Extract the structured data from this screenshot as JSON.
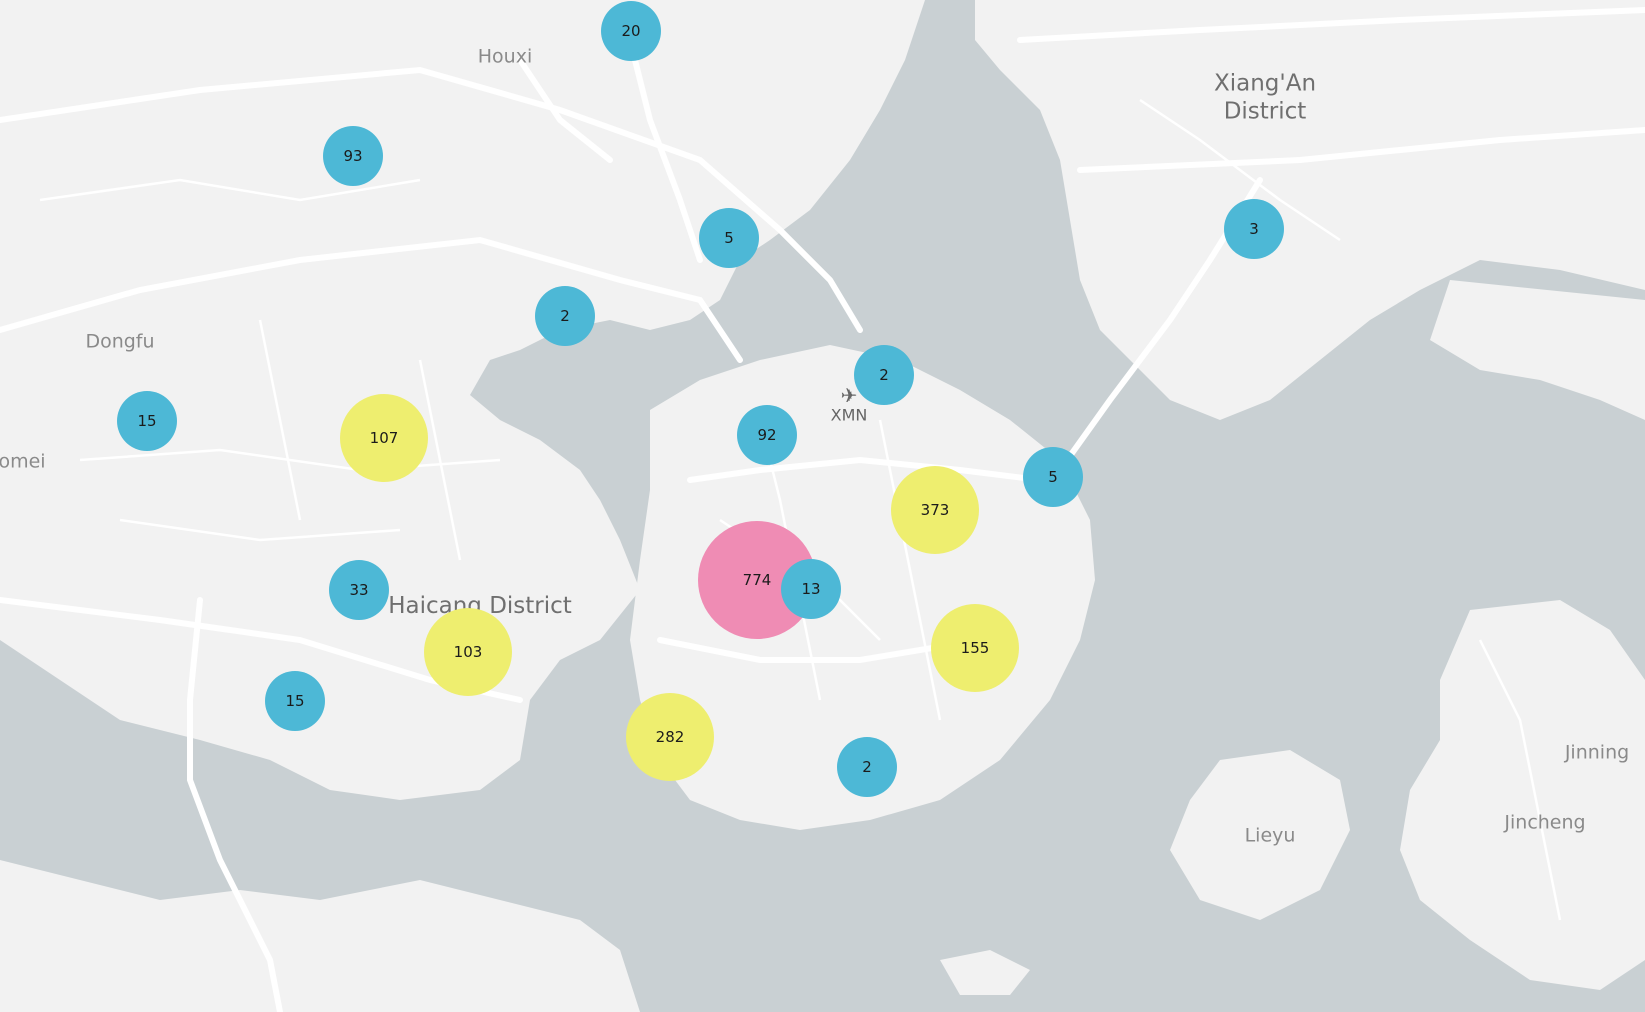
{
  "map": {
    "place_labels": [
      {
        "id": "houxi",
        "text": "Houxi",
        "size": "small"
      },
      {
        "id": "dongfu",
        "text": "Dongfu",
        "size": "small"
      },
      {
        "id": "omei",
        "text": "omei",
        "size": "small"
      },
      {
        "id": "xiangan",
        "text": "Xiang'An\nDistrict",
        "size": "big"
      },
      {
        "id": "haicang",
        "text": "Haicang District",
        "size": "big"
      },
      {
        "id": "jinning",
        "text": "Jinning",
        "size": "small"
      },
      {
        "id": "jincheng",
        "text": "Jincheng",
        "size": "small"
      },
      {
        "id": "lieyu",
        "text": "Lieyu",
        "size": "small"
      }
    ],
    "airport": {
      "code": "XMN",
      "icon": "airplane-icon"
    },
    "clusters": [
      {
        "id": "c20",
        "count": "20",
        "tier": "small"
      },
      {
        "id": "c93",
        "count": "93",
        "tier": "small"
      },
      {
        "id": "c5a",
        "count": "5",
        "tier": "small"
      },
      {
        "id": "c2a",
        "count": "2",
        "tier": "small"
      },
      {
        "id": "c3",
        "count": "3",
        "tier": "small"
      },
      {
        "id": "c15a",
        "count": "15",
        "tier": "small"
      },
      {
        "id": "c107",
        "count": "107",
        "tier": "mid"
      },
      {
        "id": "c2b",
        "count": "2",
        "tier": "small"
      },
      {
        "id": "c92",
        "count": "92",
        "tier": "small"
      },
      {
        "id": "c5b",
        "count": "5",
        "tier": "small"
      },
      {
        "id": "c373",
        "count": "373",
        "tier": "mid"
      },
      {
        "id": "c774",
        "count": "774",
        "tier": "large"
      },
      {
        "id": "c13",
        "count": "13",
        "tier": "small"
      },
      {
        "id": "c33",
        "count": "33",
        "tier": "small"
      },
      {
        "id": "c103",
        "count": "103",
        "tier": "mid"
      },
      {
        "id": "c155",
        "count": "155",
        "tier": "mid"
      },
      {
        "id": "c15b",
        "count": "15",
        "tier": "small"
      },
      {
        "id": "c282",
        "count": "282",
        "tier": "mid"
      },
      {
        "id": "c2c",
        "count": "2",
        "tier": "small"
      }
    ],
    "colors": {
      "water": "#c9d0d3",
      "land": "#f2f2f2",
      "road": "#ffffff",
      "small_cluster": "#4db8d6",
      "mid_cluster": "#eeee6f",
      "large_cluster": "#ef8cb4"
    }
  }
}
